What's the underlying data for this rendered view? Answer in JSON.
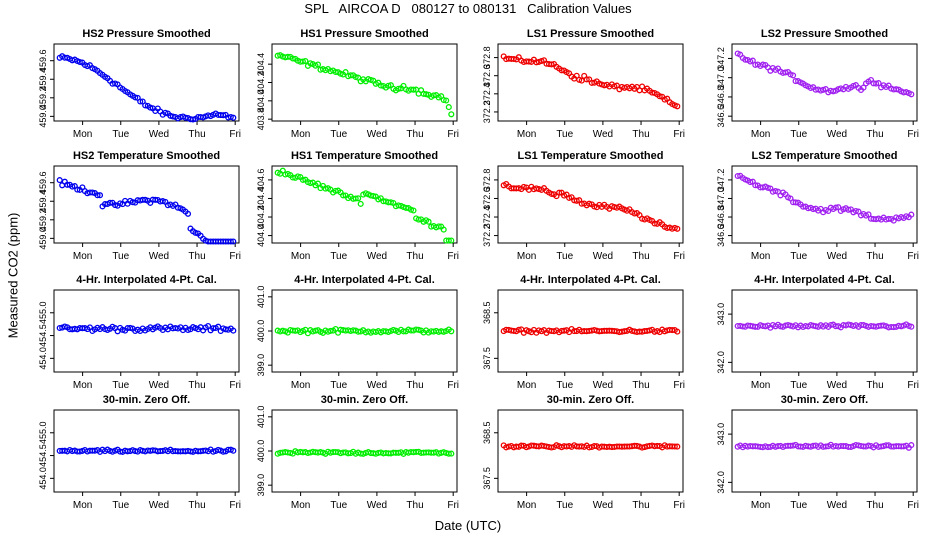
{
  "title": "SPL   AIRCOA D   080127 to 080131   Calibration Values",
  "xlabel": "Date (UTC)",
  "ylabel": "Measured CO2 (ppm)",
  "days": [
    "Mon",
    "Tue",
    "Wed",
    "Thu",
    "Fri"
  ],
  "colors": {
    "blue": "#0000ee",
    "green": "#00ee00",
    "red": "#ee0000",
    "purple": "#a020f0"
  },
  "chart_data": [
    {
      "type": "scatter",
      "title": "HS2 Pressure Smoothed",
      "color": "blue",
      "ylim": [
        458.95,
        459.78
      ],
      "yticks": [
        "459.0",
        "459.2",
        "459.4",
        "459.6"
      ],
      "yticks_values": [
        459.0,
        459.2,
        459.4,
        459.6
      ],
      "xlim": [
        -0.75,
        4.1
      ],
      "trend": "hs2p"
    },
    {
      "type": "scatter",
      "title": "HS1 Pressure Smoothed",
      "color": "green",
      "ylim": [
        403.78,
        404.62
      ],
      "yticks": [
        "403.8",
        "404.0",
        "404.2",
        "404.4"
      ],
      "yticks_values": [
        403.8,
        404.0,
        404.2,
        404.4
      ],
      "xlim": [
        -0.75,
        4.1
      ],
      "trend": "hs1p"
    },
    {
      "type": "scatter",
      "title": "LS1 Pressure Smoothed",
      "color": "red",
      "ylim": [
        372.1,
        372.95
      ],
      "yticks": [
        "372.2",
        "372.4",
        "372.6",
        "372.8"
      ],
      "yticks_values": [
        372.2,
        372.4,
        372.6,
        372.8
      ],
      "xlim": [
        -0.75,
        4.1
      ],
      "trend": "ls1p"
    },
    {
      "type": "scatter",
      "title": "LS2 Pressure Smoothed",
      "color": "purple",
      "ylim": [
        346.55,
        347.35
      ],
      "yticks": [
        "346.6",
        "346.8",
        "347.0",
        "347.2"
      ],
      "yticks_values": [
        346.6,
        346.8,
        347.0,
        347.2
      ],
      "xlim": [
        -0.75,
        4.1
      ],
      "trend": "ls2p"
    },
    {
      "type": "scatter",
      "title": "HS2 Temperature Smoothed",
      "color": "blue",
      "ylim": [
        458.95,
        459.78
      ],
      "yticks": [
        "459.0",
        "459.2",
        "459.4",
        "459.6"
      ],
      "yticks_values": [
        459.0,
        459.2,
        459.4,
        459.6
      ],
      "xlim": [
        -0.75,
        4.1
      ],
      "trend": "hs2t"
    },
    {
      "type": "scatter",
      "title": "HS1 Temperature Smoothed",
      "color": "green",
      "ylim": [
        403.92,
        404.75
      ],
      "yticks": [
        "404.0",
        "404.2",
        "404.4",
        "404.6"
      ],
      "yticks_values": [
        404.0,
        404.2,
        404.4,
        404.6
      ],
      "xlim": [
        -0.75,
        4.1
      ],
      "trend": "hs1t"
    },
    {
      "type": "scatter",
      "title": "LS1 Temperature Smoothed",
      "color": "red",
      "ylim": [
        372.12,
        372.95
      ],
      "yticks": [
        "372.2",
        "372.4",
        "372.6",
        "372.8"
      ],
      "yticks_values": [
        372.2,
        372.4,
        372.6,
        372.8
      ],
      "xlim": [
        -0.75,
        4.1
      ],
      "trend": "ls1t"
    },
    {
      "type": "scatter",
      "title": "LS2 Temperature Smoothed",
      "color": "purple",
      "ylim": [
        346.52,
        347.35
      ],
      "yticks": [
        "346.6",
        "346.8",
        "347.0",
        "347.2"
      ],
      "yticks_values": [
        346.6,
        346.8,
        347.0,
        347.2
      ],
      "xlim": [
        -0.75,
        4.1
      ],
      "trend": "ls2t"
    },
    {
      "type": "scatter",
      "title": "4-Hr. Interpolated 4-Pt. Cal.",
      "color": "blue",
      "ylim": [
        453.7,
        455.5
      ],
      "yticks": [
        "454.0",
        "454.5",
        "455.0"
      ],
      "yticks_values": [
        454.0,
        454.5,
        455.0
      ],
      "xlim": [
        -0.75,
        4.1
      ],
      "trend": "flat",
      "level": 454.65,
      "noise": 0.08
    },
    {
      "type": "scatter",
      "title": "4-Hr. Interpolated 4-Pt. Cal.",
      "color": "green",
      "ylim": [
        398.8,
        401.2
      ],
      "yticks": [
        "399.0",
        "400.0",
        "401.0"
      ],
      "yticks_values": [
        399.0,
        400.0,
        401.0
      ],
      "xlim": [
        -0.75,
        4.1
      ],
      "trend": "flat",
      "level": 400.0,
      "noise": 0.08
    },
    {
      "type": "scatter",
      "title": "4-Hr. Interpolated 4-Pt. Cal.",
      "color": "red",
      "ylim": [
        367.2,
        369.0
      ],
      "yticks": [
        "367.5",
        "368.5"
      ],
      "yticks_values": [
        367.5,
        368.5
      ],
      "xlim": [
        -0.75,
        4.1
      ],
      "trend": "flat",
      "level": 368.1,
      "noise": 0.05
    },
    {
      "type": "scatter",
      "title": "4-Hr. Interpolated 4-Pt. Cal.",
      "color": "purple",
      "ylim": [
        341.8,
        343.5
      ],
      "yticks": [
        "342.0",
        "343.0"
      ],
      "yticks_values": [
        342.0,
        343.0
      ],
      "xlim": [
        -0.75,
        4.1
      ],
      "trend": "flat",
      "level": 342.75,
      "noise": 0.05
    },
    {
      "type": "scatter",
      "title": "30-min. Zero Off.",
      "color": "blue",
      "ylim": [
        453.7,
        455.5
      ],
      "yticks": [
        "454.0",
        "454.5",
        "455.0"
      ],
      "yticks_values": [
        454.0,
        454.5,
        455.0
      ],
      "xlim": [
        -0.75,
        4.1
      ],
      "trend": "flat",
      "level": 454.6,
      "noise": 0.04
    },
    {
      "type": "scatter",
      "title": "30-min. Zero Off.",
      "color": "green",
      "ylim": [
        398.8,
        401.2
      ],
      "yticks": [
        "399.0",
        "400.0",
        "401.0"
      ],
      "yticks_values": [
        399.0,
        400.0,
        401.0
      ],
      "xlim": [
        -0.75,
        4.1
      ],
      "trend": "flat",
      "level": 399.95,
      "noise": 0.06
    },
    {
      "type": "scatter",
      "title": "30-min. Zero Off.",
      "color": "red",
      "ylim": [
        367.2,
        369.0
      ],
      "yticks": [
        "367.5",
        "368.5"
      ],
      "yticks_values": [
        367.5,
        368.5
      ],
      "xlim": [
        -0.75,
        4.1
      ],
      "trend": "flat",
      "level": 368.2,
      "noise": 0.04
    },
    {
      "type": "scatter",
      "title": "30-min. Zero Off.",
      "color": "purple",
      "ylim": [
        341.8,
        343.5
      ],
      "yticks": [
        "342.0",
        "343.0"
      ],
      "yticks_values": [
        342.0,
        343.0
      ],
      "xlim": [
        -0.75,
        4.1
      ],
      "trend": "flat",
      "level": 342.75,
      "noise": 0.04
    }
  ]
}
